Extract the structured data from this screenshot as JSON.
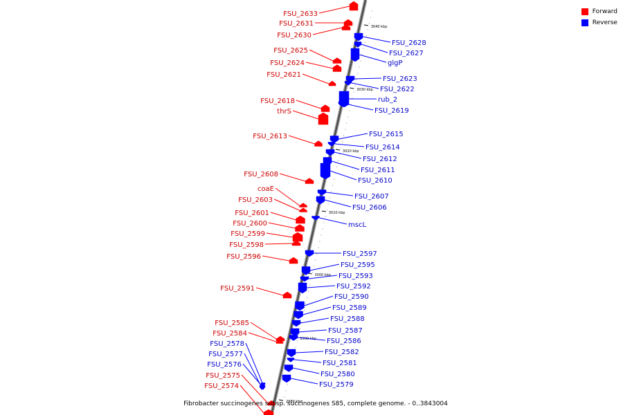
{
  "legend": {
    "forward_label": "Forward",
    "reverse_label": "Reverse",
    "forward_color": "#ff0000",
    "reverse_color": "#0000ff"
  },
  "caption": "Fibrobacter succinogenes subsp. succinogenes S85, complete genome. - 0..3843004",
  "scale_marks": [
    "3040 kbp",
    "3030 kbp",
    "3020 kbp",
    "3010 kbp",
    "3000 kbp",
    "2990 kbp",
    "2980 kbp"
  ],
  "genes_forward": [
    "FSU_2633",
    "FSU_2631",
    "FSU_2630",
    "FSU_2625",
    "FSU_2624",
    "FSU_2621",
    "FSU_2618",
    "thrS",
    "FSU_2613",
    "FSU_2608",
    "coaE",
    "FSU_2603",
    "FSU_2601",
    "FSU_2600",
    "FSU_2599",
    "FSU_2598",
    "FSU_2596",
    "FSU_2591",
    "FSU_2585",
    "FSU_2584",
    "FSU_2575",
    "FSU_2574"
  ],
  "genes_reverse": [
    "FSU_2628",
    "FSU_2627",
    "glgP",
    "FSU_2623",
    "FSU_2622",
    "rub_2",
    "FSU_2619",
    "FSU_2615",
    "FSU_2614",
    "FSU_2612",
    "FSU_2611",
    "FSU_2610",
    "FSU_2607",
    "FSU_2606",
    "mscL",
    "FSU_2597",
    "FSU_2595",
    "FSU_2593",
    "FSU_2592",
    "FSU_2590",
    "FSU_2589",
    "FSU_2588",
    "FSU_2587",
    "FSU_2586",
    "FSU_2582",
    "FSU_2581",
    "FSU_2580",
    "FSU_2579",
    "FSU_2578",
    "FSU_2577",
    "FSU_2576"
  ]
}
